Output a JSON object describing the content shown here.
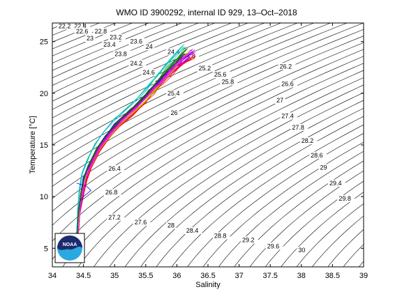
{
  "chart_data": {
    "type": "line",
    "title": "WMO ID 3900292, internal ID 929, 13–Oct–2018",
    "xlabel": "Salinity",
    "ylabel": "Temperature [°C]",
    "xlim": [
      34,
      39
    ],
    "ylim": [
      3.2,
      26.8
    ],
    "x_ticks": [
      "34",
      "34.5",
      "35",
      "35.5",
      "36",
      "36.5",
      "37",
      "37.5",
      "38",
      "38.5",
      "39"
    ],
    "y_ticks": [
      "5",
      "10",
      "15",
      "20",
      "25"
    ],
    "grid": false,
    "legend": "none",
    "density_contours": {
      "levels": [
        "22.2",
        "22.4",
        "22.6",
        "22.8",
        "23",
        "23.2",
        "23.4",
        "23.6",
        "23.8",
        "24",
        "24.2",
        "24.4",
        "24.6",
        "24.8",
        "25",
        "25.2",
        "25.4",
        "25.6",
        "25.8",
        "26",
        "26.2",
        "26.4",
        "26.6",
        "26.8",
        "27",
        "27.2",
        "27.4",
        "27.6",
        "27.8",
        "28",
        "28.2",
        "28.4",
        "28.6",
        "28.8",
        "29",
        "29.2",
        "29.4",
        "29.6",
        "29.8",
        "30"
      ],
      "label_positions": [
        {
          "level": "22.2",
          "s": 34.1,
          "t": 26.3
        },
        {
          "level": "22.4",
          "s": 34.35,
          "t": 26.3
        },
        {
          "level": "22.6",
          "s": 34.38,
          "t": 25.8
        },
        {
          "level": "22.8",
          "s": 34.68,
          "t": 25.8
        },
        {
          "level": "23",
          "s": 34.55,
          "t": 25.1
        },
        {
          "level": "23.2",
          "s": 34.92,
          "t": 25.2
        },
        {
          "level": "23.4",
          "s": 34.82,
          "t": 24.5
        },
        {
          "level": "23.6",
          "s": 35.25,
          "t": 24.8
        },
        {
          "level": "23.8",
          "s": 35.0,
          "t": 23.6
        },
        {
          "level": "24",
          "s": 35.5,
          "t": 24.3
        },
        {
          "level": "24.2",
          "s": 35.25,
          "t": 22.7
        },
        {
          "level": "24.4",
          "s": 35.85,
          "t": 23.8
        },
        {
          "level": "24.6",
          "s": 35.45,
          "t": 21.8
        },
        {
          "level": "24.8",
          "s": 36.1,
          "t": 23.4
        },
        {
          "level": "25",
          "s": 35.65,
          "t": 20.8
        },
        {
          "level": "25.2",
          "s": 36.35,
          "t": 22.2
        },
        {
          "level": "25.4",
          "s": 35.85,
          "t": 19.8
        },
        {
          "level": "25.6",
          "s": 36.6,
          "t": 21.6
        },
        {
          "level": "25.8",
          "s": 36.72,
          "t": 20.9
        },
        {
          "level": "26",
          "s": 35.9,
          "t": 17.9
        },
        {
          "level": "26.2",
          "s": 37.65,
          "t": 22.4
        },
        {
          "level": "26.4",
          "s": 34.9,
          "t": 12.5
        },
        {
          "level": "26.6",
          "s": 37.68,
          "t": 20.7
        },
        {
          "level": "26.8",
          "s": 34.85,
          "t": 10.2
        },
        {
          "level": "27",
          "s": 37.6,
          "t": 19.1
        },
        {
          "level": "27.2",
          "s": 34.9,
          "t": 7.8
        },
        {
          "level": "27.4",
          "s": 37.68,
          "t": 17.6
        },
        {
          "level": "27.6",
          "s": 35.32,
          "t": 7.3
        },
        {
          "level": "27.8",
          "s": 37.85,
          "t": 16.5
        },
        {
          "level": "28",
          "s": 35.85,
          "t": 7.0
        },
        {
          "level": "28.2",
          "s": 38.0,
          "t": 15.2
        },
        {
          "level": "28.4",
          "s": 36.15,
          "t": 6.5
        },
        {
          "level": "28.6",
          "s": 38.15,
          "t": 13.8
        },
        {
          "level": "28.8",
          "s": 36.6,
          "t": 6.0
        },
        {
          "level": "29",
          "s": 38.3,
          "t": 12.6
        },
        {
          "level": "29.2",
          "s": 37.05,
          "t": 5.6
        },
        {
          "level": "29.4",
          "s": 38.45,
          "t": 11.1
        },
        {
          "level": "29.6",
          "s": 37.45,
          "t": 5.0
        },
        {
          "level": "29.8",
          "s": 38.6,
          "t": 9.6
        },
        {
          "level": "30",
          "s": 37.95,
          "t": 4.6
        }
      ]
    },
    "series": [
      {
        "color": "#0000ff",
        "s": [
          34.4,
          34.42,
          34.45,
          34.5,
          34.58,
          34.7,
          34.85,
          35.0,
          35.2,
          35.4,
          35.55,
          35.7,
          35.85,
          36.05,
          36.25
        ],
        "t": [
          6.0,
          8.0,
          10.0,
          11.8,
          13.0,
          14.5,
          15.8,
          17.0,
          18.1,
          19.2,
          20.2,
          21.1,
          22.0,
          23.0,
          24.0
        ]
      },
      {
        "color": "#008000",
        "s": [
          34.4,
          34.43,
          34.47,
          34.52,
          34.6,
          34.72,
          34.88,
          35.05,
          35.25,
          35.45,
          35.6,
          35.72,
          35.85,
          36.0,
          36.15
        ],
        "t": [
          6.3,
          8.5,
          10.4,
          12.0,
          13.2,
          14.7,
          16.0,
          17.2,
          18.3,
          19.4,
          20.4,
          21.3,
          22.3,
          23.3,
          24.3
        ]
      },
      {
        "color": "#ff0000",
        "s": [
          34.41,
          34.44,
          34.5,
          34.55,
          34.62,
          34.75,
          34.9,
          35.08,
          35.28,
          35.48,
          35.62,
          35.75,
          35.9,
          36.1,
          36.3
        ],
        "t": [
          6.1,
          8.3,
          10.2,
          11.6,
          12.8,
          14.3,
          15.6,
          16.8,
          17.9,
          19.0,
          20.0,
          20.9,
          21.8,
          22.8,
          23.6
        ]
      },
      {
        "color": "#00bfbf",
        "s": [
          34.39,
          34.41,
          34.44,
          34.48,
          34.56,
          34.68,
          34.82,
          34.98,
          35.18,
          35.38,
          35.52,
          35.68,
          35.8,
          35.95,
          36.1
        ],
        "t": [
          6.4,
          8.8,
          10.8,
          12.2,
          13.5,
          15.0,
          16.2,
          17.4,
          18.5,
          19.6,
          20.6,
          21.6,
          22.6,
          23.6,
          24.6
        ]
      },
      {
        "color": "#bf00bf",
        "s": [
          34.4,
          34.43,
          34.48,
          34.53,
          34.6,
          34.73,
          34.87,
          35.03,
          35.22,
          35.42,
          35.58,
          35.73,
          35.88,
          36.02,
          36.2
        ],
        "t": [
          6.2,
          8.1,
          10.0,
          11.5,
          12.9,
          14.4,
          15.7,
          16.9,
          18.0,
          19.1,
          20.1,
          21.0,
          21.9,
          22.7,
          23.4
        ]
      },
      {
        "color": "#bfbf00",
        "s": [
          34.41,
          34.44,
          34.49,
          34.54,
          34.63,
          34.76,
          34.92,
          35.1,
          35.3,
          35.5,
          35.65,
          35.78,
          35.92,
          36.05,
          36.2
        ],
        "t": [
          6.5,
          8.6,
          10.5,
          11.9,
          13.1,
          14.6,
          15.9,
          17.1,
          18.2,
          19.3,
          20.3,
          21.2,
          22.1,
          23.1,
          24.0
        ]
      },
      {
        "color": "#404040",
        "s": [
          34.4,
          34.42,
          34.46,
          34.51,
          34.59,
          34.71,
          34.86,
          35.02,
          35.21,
          35.41,
          35.56,
          35.7,
          35.83,
          35.98,
          36.12
        ],
        "t": [
          6.1,
          8.4,
          10.3,
          11.7,
          13.0,
          14.5,
          15.8,
          17.0,
          18.1,
          19.2,
          20.2,
          21.1,
          22.0,
          22.9,
          23.8
        ]
      },
      {
        "color": "#ff00ff",
        "s": [
          34.42,
          34.45,
          34.5,
          34.56,
          34.64,
          34.77,
          34.93,
          35.11,
          35.31,
          35.5,
          35.64,
          35.79,
          35.95,
          36.12,
          36.28
        ],
        "t": [
          6.6,
          8.9,
          10.7,
          12.1,
          13.3,
          14.8,
          16.1,
          17.3,
          18.4,
          19.5,
          20.5,
          21.4,
          22.4,
          23.4,
          24.2
        ]
      }
    ],
    "inversion_segment": {
      "color": "#0000ff",
      "s": [
        34.39,
        34.55,
        34.62,
        34.5,
        34.45
      ],
      "t": [
        11.3,
        11.0,
        10.6,
        10.0,
        9.6
      ]
    }
  },
  "logo": {
    "text": "NOAA",
    "colors": {
      "dark": "#1e2a6e",
      "light": "#2aa9e0"
    }
  }
}
